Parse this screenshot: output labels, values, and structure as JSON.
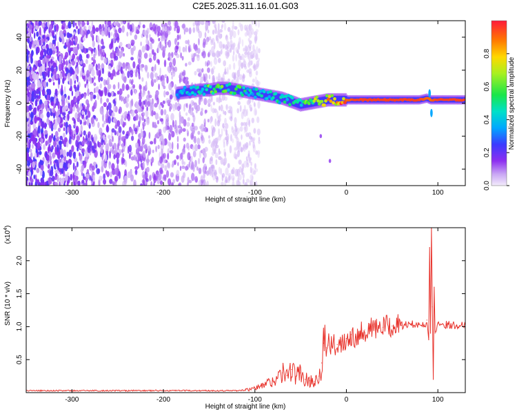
{
  "title": "C2E5.2025.311.16.01.G03",
  "chart_data": [
    {
      "type": "heatmap",
      "title": "C2E5.2025.311.16.01.G03",
      "xlabel": "Height of straight line (km)",
      "ylabel": "Frequency (Hz)",
      "xlim": [
        -350,
        130
      ],
      "ylim": [
        -50,
        50
      ],
      "x_ticks": [
        -300,
        -200,
        -100,
        0,
        100
      ],
      "x_tick_labels": [
        "-300",
        "-200",
        "-100",
        "0",
        "100"
      ],
      "y_ticks": [
        -40,
        -20,
        0,
        20,
        40
      ],
      "y_tick_labels": [
        "-40",
        "-20",
        "0",
        "20",
        "40"
      ],
      "colorbar": {
        "label": "Normalized spectral amplitude",
        "range": [
          0,
          1
        ],
        "ticks": [
          0.0,
          0.2,
          0.4,
          0.6,
          0.8
        ],
        "tick_labels": [
          "0.0",
          "0.2",
          "0.4",
          "0.6",
          "0.8"
        ]
      },
      "noise_region_x": [
        -350,
        -110
      ],
      "signal_trace": {
        "x": [
          -185,
          -170,
          -160,
          -150,
          -140,
          -130,
          -120,
          -110,
          -100,
          -90,
          -80,
          -70,
          -60,
          -50,
          -40,
          -30,
          -20,
          -10,
          0,
          10,
          20,
          40,
          60,
          80,
          88,
          92,
          100,
          110,
          130
        ],
        "frequency": [
          6,
          7,
          8,
          8,
          9,
          9,
          8,
          7,
          6,
          5,
          4,
          3,
          1,
          -1,
          0,
          1,
          2,
          2,
          2,
          2,
          2,
          2,
          2,
          2,
          3,
          2,
          2,
          2,
          2
        ],
        "amplitude": [
          0.3,
          0.4,
          0.5,
          0.55,
          0.55,
          0.5,
          0.5,
          0.45,
          0.4,
          0.4,
          0.45,
          0.45,
          0.5,
          0.5,
          0.6,
          0.7,
          0.8,
          0.85,
          0.9,
          0.95,
          0.95,
          0.95,
          0.95,
          0.95,
          0.9,
          0.9,
          0.95,
          0.95,
          0.95
        ]
      },
      "spikes": [
        {
          "x": -28,
          "frequency": -20
        },
        {
          "x": -18,
          "frequency": -35
        },
        {
          "x": 91,
          "frequency": 6
        },
        {
          "x": 93,
          "frequency": -6
        }
      ]
    },
    {
      "type": "line",
      "xlabel": "Height of straight line (km)",
      "ylabel": "SNR (10 * v/v)",
      "y_multiplier_label": "(x10",
      "y_multiplier_exponent": "4",
      "xlim": [
        -350,
        130
      ],
      "ylim": [
        0,
        2.5
      ],
      "x_ticks": [
        -300,
        -200,
        -100,
        0,
        100
      ],
      "x_tick_labels": [
        "-300",
        "-200",
        "-100",
        "0",
        "100"
      ],
      "y_ticks": [
        0.5,
        1.0,
        1.5,
        2.0
      ],
      "y_tick_labels": [
        "0.5",
        "1.0",
        "1.5",
        "2.0"
      ],
      "color": "#e8322b",
      "series": [
        {
          "name": "SNR",
          "x": [
            -350,
            -300,
            -250,
            -200,
            -150,
            -120,
            -110,
            -100,
            -90,
            -80,
            -75,
            -70,
            -65,
            -60,
            -55,
            -50,
            -45,
            -40,
            -35,
            -30,
            -27,
            -25,
            -22,
            -20,
            -15,
            -10,
            -5,
            0,
            5,
            10,
            15,
            20,
            30,
            40,
            50,
            60,
            70,
            80,
            85,
            88,
            90,
            91,
            92,
            93,
            94,
            95,
            96,
            97,
            100,
            110,
            120,
            130
          ],
          "y": [
            0.03,
            0.03,
            0.03,
            0.03,
            0.03,
            0.03,
            0.04,
            0.06,
            0.12,
            0.18,
            0.22,
            0.3,
            0.26,
            0.35,
            0.25,
            0.3,
            0.2,
            0.18,
            0.17,
            0.25,
            0.45,
            0.75,
            0.68,
            0.72,
            0.7,
            0.73,
            0.78,
            0.82,
            0.88,
            0.85,
            0.92,
            0.95,
            0.97,
            0.99,
            1.01,
            1.02,
            1.03,
            1.05,
            1.0,
            1.1,
            0.8,
            2.2,
            0.9,
            2.5,
            1.3,
            0.2,
            1.6,
            0.9,
            1.05,
            1.03,
            1.02,
            1.03
          ]
        }
      ]
    }
  ]
}
